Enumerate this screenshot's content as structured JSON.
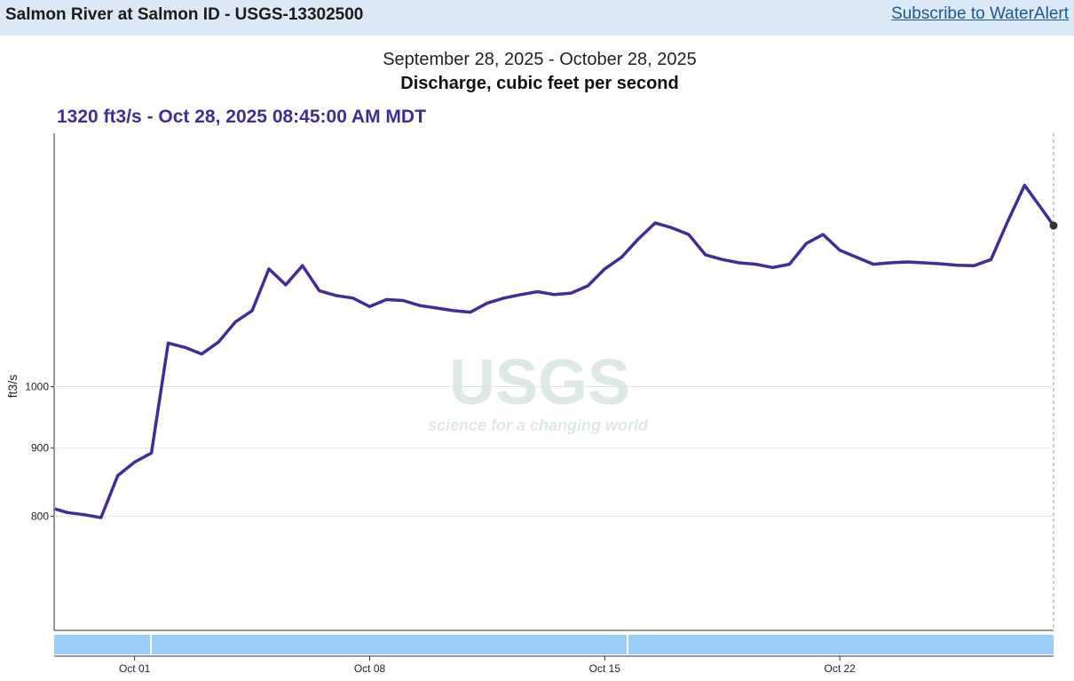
{
  "header": {
    "title": "Salmon River at Salmon ID - USGS-13302500",
    "link": "Subscribe to WaterAlert"
  },
  "watermark": {
    "logo": "USGS",
    "tagline": "science for a changing world"
  },
  "chart_data": {
    "type": "line",
    "title": "September 28, 2025 - October 28, 2025",
    "subtitle": "Discharge, cubic feet per second",
    "headline": "1320 ft3/s - Oct 28, 2025 08:45:00 AM MDT",
    "y_label": "ft3/s",
    "yscale": "log",
    "grid": true,
    "xlim": [
      "2025-09-28T14:30",
      "2025-10-28T08:45"
    ],
    "ylim": [
      657,
      1548
    ],
    "yticks": [
      800,
      900,
      1000
    ],
    "xticks": [
      {
        "value": "2025-10-01T00:00",
        "label": "Oct 01"
      },
      {
        "value": "2025-10-08T00:00",
        "label": "Oct 08"
      },
      {
        "value": "2025-10-15T00:00",
        "label": "Oct 15"
      },
      {
        "value": "2025-10-22T00:00",
        "label": "Oct 22"
      }
    ],
    "x": [
      "2025-09-28T15:00",
      "2025-09-29T00:00",
      "2025-09-29T12:00",
      "2025-09-30T00:00",
      "2025-09-30T12:00",
      "2025-10-01T00:00",
      "2025-10-01T12:00",
      "2025-10-02T00:00",
      "2025-10-02T12:00",
      "2025-10-03T00:00",
      "2025-10-03T12:00",
      "2025-10-04T00:00",
      "2025-10-04T12:00",
      "2025-10-05T00:00",
      "2025-10-05T12:00",
      "2025-10-06T00:00",
      "2025-10-06T12:00",
      "2025-10-07T00:00",
      "2025-10-07T12:00",
      "2025-10-08T00:00",
      "2025-10-08T12:00",
      "2025-10-09T00:00",
      "2025-10-09T12:00",
      "2025-10-10T00:00",
      "2025-10-10T12:00",
      "2025-10-11T00:00",
      "2025-10-11T12:00",
      "2025-10-12T00:00",
      "2025-10-12T12:00",
      "2025-10-13T00:00",
      "2025-10-13T12:00",
      "2025-10-14T00:00",
      "2025-10-14T12:00",
      "2025-10-15T00:00",
      "2025-10-15T12:00",
      "2025-10-16T00:00",
      "2025-10-16T12:00",
      "2025-10-17T00:00",
      "2025-10-17T12:00",
      "2025-10-18T00:00",
      "2025-10-18T12:00",
      "2025-10-19T00:00",
      "2025-10-19T12:00",
      "2025-10-20T00:00",
      "2025-10-20T12:00",
      "2025-10-21T00:00",
      "2025-10-21T12:00",
      "2025-10-22T00:00",
      "2025-10-22T12:00",
      "2025-10-23T00:00",
      "2025-10-23T12:00",
      "2025-10-24T00:00",
      "2025-10-24T12:00",
      "2025-10-25T00:00",
      "2025-10-25T12:00",
      "2025-10-26T00:00",
      "2025-10-26T12:00",
      "2025-10-27T00:00",
      "2025-10-27T12:00",
      "2025-10-28T00:00",
      "2025-10-28T08:45"
    ],
    "series": [
      {
        "name": "Discharge",
        "color": "#3b2f9a",
        "values": [
          810,
          805,
          802,
          798,
          858,
          878,
          892,
          1078,
          1070,
          1058,
          1080,
          1118,
          1140,
          1225,
          1192,
          1232,
          1180,
          1170,
          1165,
          1148,
          1162,
          1160,
          1150,
          1145,
          1140,
          1137,
          1155,
          1165,
          1172,
          1178,
          1172,
          1175,
          1190,
          1225,
          1250,
          1290,
          1326,
          1315,
          1300,
          1255,
          1245,
          1238,
          1235,
          1228,
          1235,
          1280,
          1300,
          1265,
          1250,
          1235,
          1238,
          1240,
          1238,
          1236,
          1233,
          1232,
          1245,
          1330,
          1415,
          1360,
          1320
        ]
      }
    ]
  }
}
